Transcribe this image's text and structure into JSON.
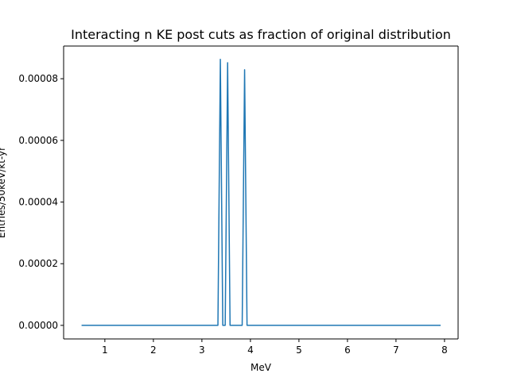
{
  "chart_data": {
    "type": "line",
    "title": "Interacting n KE post cuts as fraction of original distribution",
    "xlabel": "MeV",
    "ylabel": "Entries/50keV/kt-yr",
    "xlim": [
      0.15,
      8.28
    ],
    "ylim": [
      -4.4e-06,
      9.06e-05
    ],
    "xticks": [
      1,
      2,
      3,
      4,
      5,
      6,
      7,
      8
    ],
    "xtick_labels": [
      "1",
      "2",
      "3",
      "4",
      "5",
      "6",
      "7",
      "8"
    ],
    "yticks": [
      0,
      2e-05,
      4e-05,
      6e-05,
      8e-05
    ],
    "ytick_labels": [
      "0.00000",
      "0.00002",
      "0.00004",
      "0.00006",
      "0.00008"
    ],
    "grid": false,
    "series": [
      {
        "color": "#1f77b4",
        "points": [
          [
            0.52,
            0.0
          ],
          [
            3.33,
            0.0
          ],
          [
            3.38,
            8.63e-05
          ],
          [
            3.43,
            0.0
          ],
          [
            3.48,
            0.0
          ],
          [
            3.53,
            8.52e-05
          ],
          [
            3.58,
            0.0
          ],
          [
            3.83,
            0.0
          ],
          [
            3.88,
            8.29e-05
          ],
          [
            3.93,
            0.0
          ],
          [
            7.92,
            0.0
          ]
        ]
      }
    ]
  }
}
